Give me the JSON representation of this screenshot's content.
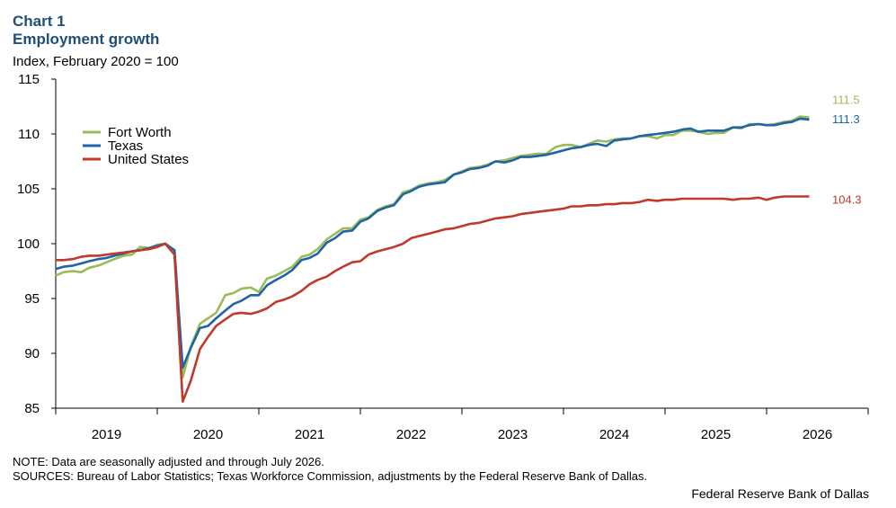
{
  "chart_label": "Chart 1",
  "chart_title": "Employment growth",
  "unit_label": "Index, February 2020 = 100",
  "note": "NOTE: Data are seasonally adjusted and through July 2026.",
  "sources": "SOURCES: Bureau of Labor Statistics; Texas Workforce Commission, adjustments by the Federal Reserve Bank of Dallas.",
  "credit": "Federal Reserve Bank of Dallas",
  "chart_data": {
    "type": "line",
    "title": "Employment growth",
    "ylabel": "Index, February 2020 = 100",
    "ylim": [
      85,
      115
    ],
    "yticks": [
      85,
      90,
      95,
      100,
      105,
      110,
      115
    ],
    "xlim": [
      2019.0,
      2027.0
    ],
    "xticks": [
      "2019",
      "2020",
      "2021",
      "2022",
      "2023",
      "2024",
      "2025",
      "2026"
    ],
    "grid": false,
    "legend": "top-left",
    "series": [
      {
        "name": "Fort Worth",
        "color": "#9bbb59",
        "end_label": "111.5",
        "points": [
          [
            2019.0,
            97.1
          ],
          [
            2019.08,
            97.4
          ],
          [
            2019.17,
            97.5
          ],
          [
            2019.25,
            97.4
          ],
          [
            2019.33,
            97.8
          ],
          [
            2019.42,
            98.0
          ],
          [
            2019.5,
            98.3
          ],
          [
            2019.58,
            98.6
          ],
          [
            2019.67,
            98.9
          ],
          [
            2019.75,
            99.0
          ],
          [
            2019.83,
            99.7
          ],
          [
            2019.92,
            99.6
          ],
          [
            2020.0,
            99.9
          ],
          [
            2020.08,
            100.0
          ],
          [
            2020.17,
            99.0
          ],
          [
            2020.25,
            87.8
          ],
          [
            2020.33,
            90.6
          ],
          [
            2020.42,
            92.7
          ],
          [
            2020.5,
            93.2
          ],
          [
            2020.58,
            93.7
          ],
          [
            2020.67,
            95.3
          ],
          [
            2020.75,
            95.5
          ],
          [
            2020.83,
            95.9
          ],
          [
            2020.92,
            96.0
          ],
          [
            2021.0,
            95.6
          ],
          [
            2021.08,
            96.8
          ],
          [
            2021.17,
            97.1
          ],
          [
            2021.25,
            97.5
          ],
          [
            2021.33,
            97.9
          ],
          [
            2021.42,
            98.8
          ],
          [
            2021.5,
            99.0
          ],
          [
            2021.58,
            99.5
          ],
          [
            2021.67,
            100.4
          ],
          [
            2021.75,
            100.9
          ],
          [
            2021.83,
            101.4
          ],
          [
            2021.92,
            101.4
          ],
          [
            2022.0,
            102.2
          ],
          [
            2022.08,
            102.4
          ],
          [
            2022.17,
            103.1
          ],
          [
            2022.25,
            103.4
          ],
          [
            2022.33,
            103.6
          ],
          [
            2022.42,
            104.7
          ],
          [
            2022.5,
            104.9
          ],
          [
            2022.58,
            105.3
          ],
          [
            2022.67,
            105.5
          ],
          [
            2022.75,
            105.6
          ],
          [
            2022.83,
            105.8
          ],
          [
            2022.92,
            106.3
          ],
          [
            2023.0,
            106.6
          ],
          [
            2023.08,
            106.9
          ],
          [
            2023.17,
            107.0
          ],
          [
            2023.25,
            107.2
          ],
          [
            2023.33,
            107.5
          ],
          [
            2023.42,
            107.6
          ],
          [
            2023.5,
            107.8
          ],
          [
            2023.58,
            108.0
          ],
          [
            2023.67,
            108.1
          ],
          [
            2023.75,
            108.2
          ],
          [
            2023.83,
            108.2
          ],
          [
            2023.92,
            108.8
          ],
          [
            2024.0,
            109.0
          ],
          [
            2024.08,
            109.0
          ],
          [
            2024.17,
            108.8
          ],
          [
            2024.25,
            109.1
          ],
          [
            2024.33,
            109.4
          ],
          [
            2024.42,
            109.3
          ],
          [
            2024.5,
            109.5
          ],
          [
            2024.58,
            109.6
          ],
          [
            2024.67,
            109.6
          ],
          [
            2024.75,
            109.8
          ],
          [
            2024.83,
            109.8
          ],
          [
            2024.92,
            109.6
          ],
          [
            2025.0,
            109.9
          ],
          [
            2025.08,
            109.9
          ],
          [
            2025.17,
            110.3
          ],
          [
            2025.25,
            110.3
          ],
          [
            2025.33,
            110.2
          ],
          [
            2025.42,
            110.0
          ],
          [
            2025.5,
            110.1
          ],
          [
            2025.58,
            110.1
          ],
          [
            2025.67,
            110.6
          ],
          [
            2025.75,
            110.5
          ],
          [
            2025.83,
            110.9
          ],
          [
            2025.92,
            110.9
          ],
          [
            2026.0,
            110.8
          ],
          [
            2026.08,
            110.9
          ],
          [
            2026.17,
            111.1
          ],
          [
            2026.25,
            111.2
          ],
          [
            2026.33,
            111.6
          ],
          [
            2026.42,
            111.5
          ]
        ]
      },
      {
        "name": "Texas",
        "color": "#1f64a8",
        "end_label": "111.3",
        "points": [
          [
            2019.0,
            97.7
          ],
          [
            2019.08,
            97.9
          ],
          [
            2019.17,
            98.0
          ],
          [
            2019.25,
            98.2
          ],
          [
            2019.33,
            98.4
          ],
          [
            2019.42,
            98.6
          ],
          [
            2019.5,
            98.7
          ],
          [
            2019.58,
            98.9
          ],
          [
            2019.67,
            99.1
          ],
          [
            2019.75,
            99.3
          ],
          [
            2019.83,
            99.4
          ],
          [
            2019.92,
            99.6
          ],
          [
            2020.0,
            99.8
          ],
          [
            2020.08,
            100.0
          ],
          [
            2020.17,
            99.4
          ],
          [
            2020.25,
            88.7
          ],
          [
            2020.33,
            90.5
          ],
          [
            2020.42,
            92.3
          ],
          [
            2020.5,
            92.5
          ],
          [
            2020.58,
            93.2
          ],
          [
            2020.67,
            93.9
          ],
          [
            2020.75,
            94.5
          ],
          [
            2020.83,
            94.8
          ],
          [
            2020.92,
            95.3
          ],
          [
            2021.0,
            95.3
          ],
          [
            2021.08,
            96.2
          ],
          [
            2021.17,
            96.7
          ],
          [
            2021.25,
            97.1
          ],
          [
            2021.33,
            97.6
          ],
          [
            2021.42,
            98.5
          ],
          [
            2021.5,
            98.7
          ],
          [
            2021.58,
            99.1
          ],
          [
            2021.67,
            100.1
          ],
          [
            2021.75,
            100.5
          ],
          [
            2021.83,
            101.1
          ],
          [
            2021.92,
            101.2
          ],
          [
            2022.0,
            102.0
          ],
          [
            2022.08,
            102.3
          ],
          [
            2022.17,
            103.0
          ],
          [
            2022.25,
            103.3
          ],
          [
            2022.33,
            103.5
          ],
          [
            2022.42,
            104.5
          ],
          [
            2022.5,
            104.8
          ],
          [
            2022.58,
            105.2
          ],
          [
            2022.67,
            105.4
          ],
          [
            2022.75,
            105.5
          ],
          [
            2022.83,
            105.6
          ],
          [
            2022.92,
            106.3
          ],
          [
            2023.0,
            106.5
          ],
          [
            2023.08,
            106.8
          ],
          [
            2023.17,
            106.9
          ],
          [
            2023.25,
            107.1
          ],
          [
            2023.33,
            107.5
          ],
          [
            2023.42,
            107.4
          ],
          [
            2023.5,
            107.6
          ],
          [
            2023.58,
            107.9
          ],
          [
            2023.67,
            107.9
          ],
          [
            2023.75,
            108.0
          ],
          [
            2023.83,
            108.1
          ],
          [
            2023.92,
            108.3
          ],
          [
            2024.0,
            108.5
          ],
          [
            2024.08,
            108.7
          ],
          [
            2024.17,
            108.8
          ],
          [
            2024.25,
            109.0
          ],
          [
            2024.33,
            109.1
          ],
          [
            2024.42,
            108.9
          ],
          [
            2024.5,
            109.4
          ],
          [
            2024.58,
            109.5
          ],
          [
            2024.67,
            109.6
          ],
          [
            2024.75,
            109.8
          ],
          [
            2024.83,
            109.9
          ],
          [
            2024.92,
            110.0
          ],
          [
            2025.0,
            110.1
          ],
          [
            2025.08,
            110.2
          ],
          [
            2025.17,
            110.4
          ],
          [
            2025.25,
            110.5
          ],
          [
            2025.33,
            110.2
          ],
          [
            2025.42,
            110.3
          ],
          [
            2025.5,
            110.3
          ],
          [
            2025.58,
            110.3
          ],
          [
            2025.67,
            110.6
          ],
          [
            2025.75,
            110.6
          ],
          [
            2025.83,
            110.8
          ],
          [
            2025.92,
            110.9
          ],
          [
            2026.0,
            110.8
          ],
          [
            2026.08,
            110.8
          ],
          [
            2026.17,
            111.0
          ],
          [
            2026.25,
            111.1
          ],
          [
            2026.33,
            111.4
          ],
          [
            2026.42,
            111.3
          ]
        ]
      },
      {
        "name": "United States",
        "color": "#c0392b",
        "end_label": "104.3",
        "points": [
          [
            2019.0,
            98.5
          ],
          [
            2019.08,
            98.5
          ],
          [
            2019.17,
            98.6
          ],
          [
            2019.25,
            98.8
          ],
          [
            2019.33,
            98.9
          ],
          [
            2019.42,
            98.9
          ],
          [
            2019.5,
            99.0
          ],
          [
            2019.58,
            99.1
          ],
          [
            2019.67,
            99.2
          ],
          [
            2019.75,
            99.3
          ],
          [
            2019.83,
            99.4
          ],
          [
            2019.92,
            99.5
          ],
          [
            2020.0,
            99.7
          ],
          [
            2020.08,
            100.0
          ],
          [
            2020.17,
            99.0
          ],
          [
            2020.25,
            85.6
          ],
          [
            2020.33,
            87.5
          ],
          [
            2020.42,
            90.4
          ],
          [
            2020.5,
            91.5
          ],
          [
            2020.58,
            92.5
          ],
          [
            2020.67,
            93.1
          ],
          [
            2020.75,
            93.6
          ],
          [
            2020.83,
            93.7
          ],
          [
            2020.92,
            93.6
          ],
          [
            2021.0,
            93.8
          ],
          [
            2021.08,
            94.1
          ],
          [
            2021.17,
            94.7
          ],
          [
            2021.25,
            94.9
          ],
          [
            2021.33,
            95.2
          ],
          [
            2021.42,
            95.7
          ],
          [
            2021.5,
            96.3
          ],
          [
            2021.58,
            96.7
          ],
          [
            2021.67,
            97.0
          ],
          [
            2021.75,
            97.5
          ],
          [
            2021.83,
            97.9
          ],
          [
            2021.92,
            98.3
          ],
          [
            2022.0,
            98.4
          ],
          [
            2022.08,
            99.0
          ],
          [
            2022.17,
            99.3
          ],
          [
            2022.25,
            99.5
          ],
          [
            2022.33,
            99.7
          ],
          [
            2022.42,
            100.0
          ],
          [
            2022.5,
            100.5
          ],
          [
            2022.58,
            100.7
          ],
          [
            2022.67,
            100.9
          ],
          [
            2022.75,
            101.1
          ],
          [
            2022.83,
            101.3
          ],
          [
            2022.92,
            101.4
          ],
          [
            2023.0,
            101.6
          ],
          [
            2023.08,
            101.8
          ],
          [
            2023.17,
            101.9
          ],
          [
            2023.25,
            102.1
          ],
          [
            2023.33,
            102.3
          ],
          [
            2023.42,
            102.4
          ],
          [
            2023.5,
            102.5
          ],
          [
            2023.58,
            102.7
          ],
          [
            2023.67,
            102.8
          ],
          [
            2023.75,
            102.9
          ],
          [
            2023.83,
            103.0
          ],
          [
            2023.92,
            103.1
          ],
          [
            2024.0,
            103.2
          ],
          [
            2024.08,
            103.4
          ],
          [
            2024.17,
            103.4
          ],
          [
            2024.25,
            103.5
          ],
          [
            2024.33,
            103.5
          ],
          [
            2024.42,
            103.6
          ],
          [
            2024.5,
            103.6
          ],
          [
            2024.58,
            103.7
          ],
          [
            2024.67,
            103.7
          ],
          [
            2024.75,
            103.8
          ],
          [
            2024.83,
            104.0
          ],
          [
            2024.92,
            103.9
          ],
          [
            2025.0,
            104.0
          ],
          [
            2025.08,
            104.0
          ],
          [
            2025.17,
            104.1
          ],
          [
            2025.25,
            104.1
          ],
          [
            2025.33,
            104.1
          ],
          [
            2025.42,
            104.1
          ],
          [
            2025.5,
            104.1
          ],
          [
            2025.58,
            104.1
          ],
          [
            2025.67,
            104.0
          ],
          [
            2025.75,
            104.1
          ],
          [
            2025.83,
            104.1
          ],
          [
            2025.92,
            104.2
          ],
          [
            2026.0,
            104.0
          ],
          [
            2026.08,
            104.2
          ],
          [
            2026.17,
            104.3
          ],
          [
            2026.25,
            104.3
          ],
          [
            2026.33,
            104.3
          ],
          [
            2026.42,
            104.3
          ]
        ]
      }
    ]
  }
}
